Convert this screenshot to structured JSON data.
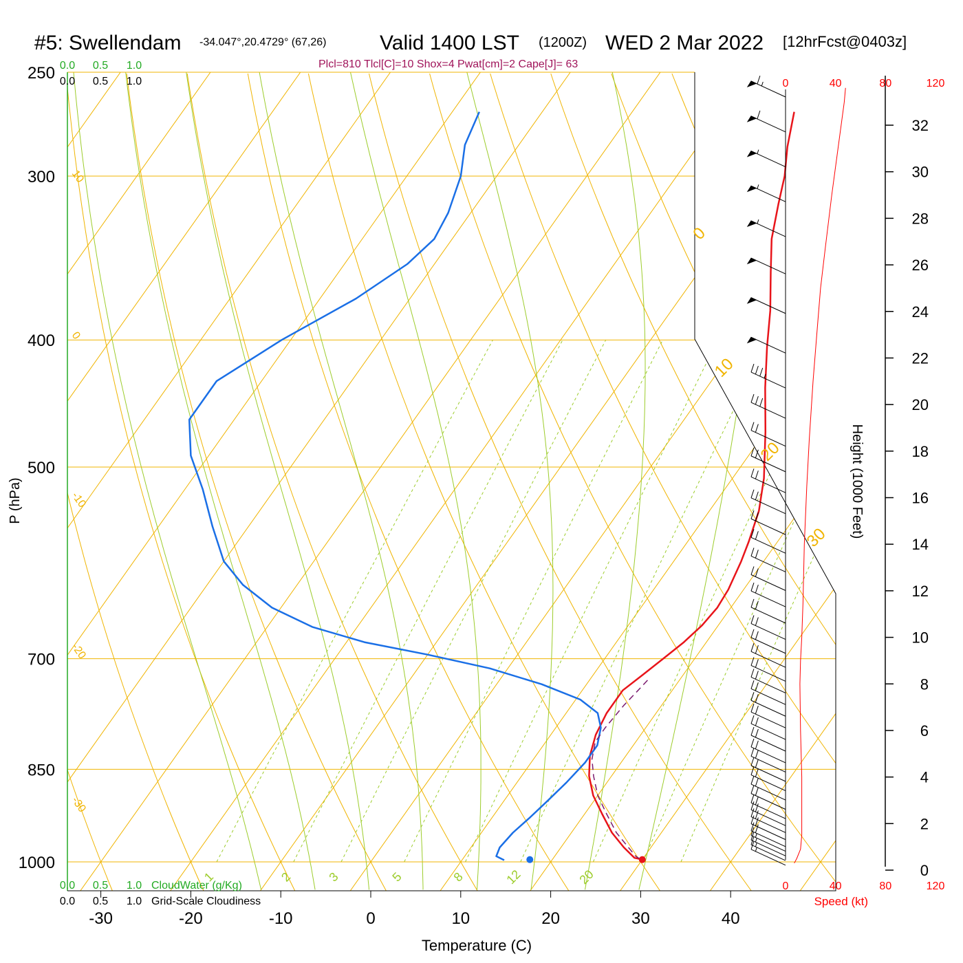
{
  "header": {
    "station": "#5: Swellendam",
    "coords": "-34.047°,20.4729° (67,26)",
    "valid": "Valid 1400 LST",
    "zulu": "(1200Z)",
    "date": "WED 2 Mar 2022",
    "forecast": "[12hrFcst@0403z]",
    "indices": "Plcl=810 Tlcl[C]=10 Shox=4 Pwat[cm]=2 Cape[J]= 63"
  },
  "colors": {
    "temperature": "#e8141a",
    "dewpoint": "#1a6fe6",
    "parcel": "#7a1a6e",
    "isotherm": "#f0b400",
    "dry_adiabat": "#f0b400",
    "moist_adiabat": "#9ccc2a",
    "mixing_ratio": "#9ccc2a",
    "index_text": "#a0145a",
    "green_text": "#22aa22",
    "speed_axis": "#ff0000"
  },
  "chart_data": {
    "type": "line",
    "title": "#5: Swellendam Valid 1400 LST (1200Z) WED 2 Mar 2022 [12hrFcst@0403z]",
    "xlabel": "Temperature (C)",
    "ylabel": "P (hPa)",
    "y2label": "Height (1000 Feet)",
    "x_ticks": [
      -30,
      -20,
      -10,
      0,
      10,
      20,
      30,
      40
    ],
    "p_ticks": [
      250,
      300,
      400,
      500,
      700,
      850,
      1000
    ],
    "height_ticks": [
      0,
      2,
      4,
      6,
      8,
      10,
      12,
      14,
      16,
      18,
      20,
      22,
      24,
      26,
      28,
      30,
      32
    ],
    "speed_ticks": [
      0,
      40,
      80,
      120
    ],
    "speed_label": "Speed (kt)",
    "cloud_ticks": [
      "0.0",
      "0.5",
      "1.0"
    ],
    "cloudwater_label": "CloudWater (g/Kg)",
    "cloudiness_label": "Grid-Scale Cloudiness",
    "isotherm_labels": [
      "10",
      "0",
      "-10",
      "-20",
      "-30"
    ],
    "isotherm_labels_right": [
      "0",
      "10",
      "20",
      "30"
    ],
    "mixing_ratio_labels": [
      "1",
      "2",
      "3",
      "5",
      "8",
      "12",
      "20"
    ],
    "series": [
      {
        "name": "temperature",
        "points": [
          [
            29.7,
            995
          ],
          [
            29.0,
            993
          ],
          [
            27.0,
            975
          ],
          [
            24.5,
            950
          ],
          [
            22.0,
            920
          ],
          [
            19.5,
            890
          ],
          [
            17.5,
            860
          ],
          [
            16.0,
            830
          ],
          [
            15.0,
            800
          ],
          [
            14.5,
            770
          ],
          [
            14.5,
            740
          ],
          [
            15.5,
            720
          ],
          [
            16.5,
            700
          ],
          [
            17.5,
            680
          ],
          [
            18.2,
            660
          ],
          [
            18.5,
            640
          ],
          [
            18.3,
            620
          ],
          [
            17.5,
            590
          ],
          [
            16.8,
            570
          ],
          [
            15.5,
            540
          ],
          [
            13.5,
            510
          ],
          [
            10.0,
            470
          ],
          [
            6.5,
            435
          ],
          [
            3.5,
            405
          ],
          [
            1.0,
            380
          ],
          [
            -2.0,
            355
          ],
          [
            -4.5,
            335
          ],
          [
            -6.5,
            315
          ],
          [
            -8.0,
            300
          ],
          [
            -10.0,
            285
          ],
          [
            -12.0,
            268
          ]
        ]
      },
      {
        "name": "dewpoint",
        "points": [
          [
            14.7,
            997
          ],
          [
            13.5,
            990
          ],
          [
            13.2,
            975
          ],
          [
            13.5,
            950
          ],
          [
            14.2,
            925
          ],
          [
            14.8,
            900
          ],
          [
            15.5,
            870
          ],
          [
            16.0,
            840
          ],
          [
            16.0,
            815
          ],
          [
            15.0,
            790
          ],
          [
            13.5,
            770
          ],
          [
            10.5,
            752
          ],
          [
            5.0,
            732
          ],
          [
            -2.0,
            712
          ],
          [
            -10.0,
            695
          ],
          [
            -18.0,
            680
          ],
          [
            -25.0,
            662
          ],
          [
            -31.0,
            640
          ],
          [
            -36.0,
            615
          ],
          [
            -40.0,
            590
          ],
          [
            -44.0,
            555
          ],
          [
            -48.0,
            520
          ],
          [
            -52.0,
            490
          ],
          [
            -55.0,
            460
          ],
          [
            -55.0,
            430
          ],
          [
            -51.0,
            400
          ],
          [
            -46.0,
            372
          ],
          [
            -43.0,
            350
          ],
          [
            -42.0,
            335
          ],
          [
            -42.5,
            320
          ],
          [
            -44.0,
            300
          ],
          [
            -46.0,
            284
          ],
          [
            -47.0,
            268
          ]
        ]
      },
      {
        "name": "parcel",
        "points": [
          [
            29.7,
            995
          ],
          [
            29.0,
            990
          ],
          [
            27.5,
            975
          ],
          [
            25.0,
            950
          ],
          [
            22.5,
            920
          ],
          [
            20.0,
            890
          ],
          [
            18.0,
            860
          ],
          [
            16.5,
            835
          ],
          [
            15.5,
            810
          ],
          [
            15.5,
            790
          ],
          [
            15.8,
            760
          ],
          [
            16.2,
            740
          ],
          [
            16.5,
            725
          ]
        ]
      }
    ],
    "markers": [
      {
        "name": "surface-temperature",
        "t": 30.0,
        "p": 996
      },
      {
        "name": "surface-dewpoint",
        "t": 17.5,
        "p": 996
      }
    ],
    "wind_barbs": [
      {
        "h": 0.3,
        "speed": 18
      },
      {
        "h": 0.5,
        "speed": 18
      },
      {
        "h": 0.7,
        "speed": 18
      },
      {
        "h": 0.9,
        "speed": 18
      },
      {
        "h": 1.1,
        "speed": 20
      },
      {
        "h": 1.4,
        "speed": 20
      },
      {
        "h": 1.7,
        "speed": 20
      },
      {
        "h": 2.0,
        "speed": 20
      },
      {
        "h": 2.3,
        "speed": 20
      },
      {
        "h": 2.7,
        "speed": 20
      },
      {
        "h": 3.1,
        "speed": 20
      },
      {
        "h": 3.5,
        "speed": 20
      },
      {
        "h": 3.9,
        "speed": 20
      },
      {
        "h": 4.3,
        "speed": 20
      },
      {
        "h": 4.7,
        "speed": 20
      },
      {
        "h": 5.2,
        "speed": 20
      },
      {
        "h": 5.7,
        "speed": 20
      },
      {
        "h": 6.2,
        "speed": 20
      },
      {
        "h": 6.7,
        "speed": 20
      },
      {
        "h": 7.2,
        "speed": 20
      },
      {
        "h": 7.7,
        "speed": 20
      },
      {
        "h": 8.2,
        "speed": 20
      },
      {
        "h": 8.8,
        "speed": 20
      },
      {
        "h": 9.4,
        "speed": 20
      },
      {
        "h": 10.0,
        "speed": 20
      },
      {
        "h": 10.7,
        "speed": 20
      },
      {
        "h": 11.4,
        "speed": 20
      },
      {
        "h": 12.1,
        "speed": 20
      },
      {
        "h": 12.9,
        "speed": 20
      },
      {
        "h": 13.7,
        "speed": 20
      },
      {
        "h": 14.5,
        "speed": 20
      },
      {
        "h": 15.4,
        "speed": 20
      },
      {
        "h": 16.3,
        "speed": 20
      },
      {
        "h": 17.2,
        "speed": 20
      },
      {
        "h": 18.3,
        "speed": 20
      },
      {
        "h": 19.5,
        "speed": 30
      },
      {
        "h": 20.8,
        "speed": 35
      },
      {
        "h": 22.3,
        "speed": 50
      },
      {
        "h": 24.0,
        "speed": 50
      },
      {
        "h": 25.7,
        "speed": 50
      },
      {
        "h": 27.3,
        "speed": 55
      },
      {
        "h": 28.8,
        "speed": 55
      },
      {
        "h": 30.3,
        "speed": 55
      },
      {
        "h": 31.8,
        "speed": 60
      },
      {
        "h": 33.3,
        "speed": 65
      }
    ],
    "speed_profile": [
      [
        7,
        0.3
      ],
      [
        9,
        0.5
      ],
      [
        12,
        0.9
      ],
      [
        13,
        1.5
      ],
      [
        13,
        4.0
      ],
      [
        12,
        6.0
      ],
      [
        11.5,
        8.0
      ],
      [
        12,
        9.0
      ],
      [
        13,
        10.0
      ],
      [
        14,
        11.5
      ],
      [
        15,
        14.0
      ],
      [
        17,
        16.5
      ],
      [
        19,
        18.5
      ],
      [
        22,
        21.0
      ],
      [
        25,
        23.0
      ],
      [
        28,
        25.0
      ],
      [
        32,
        26.8
      ],
      [
        37,
        29.0
      ],
      [
        42,
        31.0
      ],
      [
        47,
        33.0
      ],
      [
        48,
        33.6
      ]
    ],
    "grid": true
  }
}
